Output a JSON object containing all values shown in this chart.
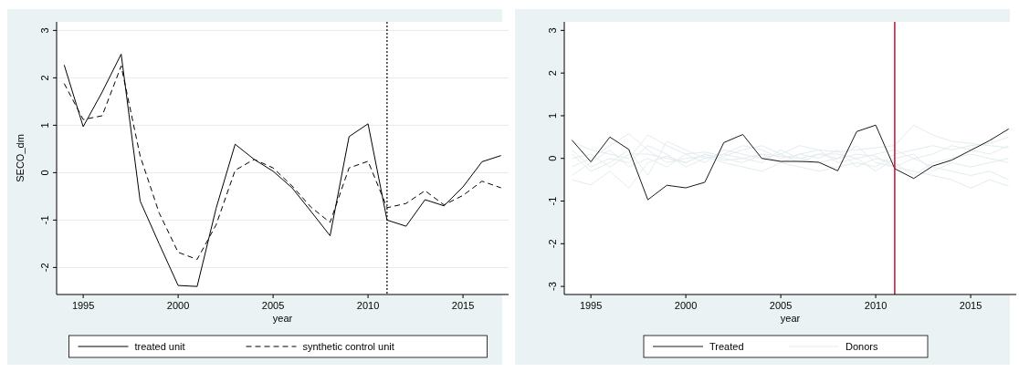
{
  "chart_data": [
    {
      "type": "line",
      "xlabel": "year",
      "ylabel": "SECO_dm",
      "x": [
        1994,
        1995,
        1996,
        1997,
        1998,
        1999,
        2000,
        2001,
        2002,
        2003,
        2004,
        2005,
        2006,
        2007,
        2008,
        2009,
        2010,
        2011,
        2012,
        2013,
        2014,
        2015,
        2016,
        2017
      ],
      "series": [
        {
          "name": "treated unit",
          "color": "#000000",
          "line_style": "solid",
          "values": [
            2.27,
            0.97,
            1.7,
            2.5,
            -0.6,
            -1.5,
            -2.38,
            -2.4,
            -0.75,
            0.6,
            0.28,
            0.03,
            -0.32,
            -0.82,
            -1.33,
            0.76,
            1.03,
            -1.0,
            -1.13,
            -0.57,
            -0.7,
            -0.3,
            0.23,
            0.36
          ]
        },
        {
          "name": "synthetic control unit",
          "color": "#000000",
          "line_style": "dashed",
          "values": [
            1.88,
            1.12,
            1.2,
            2.25,
            0.35,
            -0.85,
            -1.68,
            -1.83,
            -1.1,
            0.05,
            0.28,
            0.1,
            -0.28,
            -0.73,
            -1.05,
            0.1,
            0.24,
            -0.74,
            -0.65,
            -0.38,
            -0.68,
            -0.48,
            -0.18,
            -0.32
          ]
        }
      ],
      "xlim": [
        1993.6,
        2017.4
      ],
      "ylim": [
        -2.57,
        3.18
      ],
      "xticks": [
        1995,
        2000,
        2005,
        2010,
        2015
      ],
      "yticks": [
        -2,
        -1,
        0,
        1,
        2,
        3
      ],
      "grid": "y",
      "legend": "bottom",
      "ref_lines": [
        {
          "axis": "x",
          "value": 2011,
          "color": "#000000",
          "line_style": "dotted"
        }
      ]
    },
    {
      "type": "line",
      "xlabel": "year",
      "x": [
        1994,
        1995,
        1996,
        1997,
        1998,
        1999,
        2000,
        2001,
        2002,
        2003,
        2004,
        2005,
        2006,
        2007,
        2008,
        2009,
        2010,
        2011,
        2012,
        2013,
        2014,
        2015,
        2016,
        2017
      ],
      "series": [
        {
          "name": "Treated",
          "color": "#1a1a1a",
          "line_style": "solid",
          "values": [
            0.43,
            -0.08,
            0.5,
            0.21,
            -0.97,
            -0.63,
            -0.69,
            -0.56,
            0.37,
            0.56,
            0.0,
            -0.07,
            -0.07,
            -0.09,
            -0.29,
            0.63,
            0.78,
            -0.24,
            -0.47,
            -0.18,
            -0.04,
            0.19,
            0.42,
            0.69
          ]
        },
        {
          "name": "Donors",
          "color": "#e3ecee",
          "line_style": "solid",
          "values": [
            -0.5,
            -0.62,
            -0.3,
            -0.7,
            -0.1,
            0.05,
            -0.1,
            0.1,
            -0.05,
            0.0,
            0.1,
            0.05,
            0.0,
            -0.1,
            0.0,
            0.1,
            0.05,
            -0.2,
            -0.3,
            -0.4,
            -0.5,
            -0.7,
            -0.5,
            -0.65
          ]
        },
        {
          "color": "#e3ecee",
          "line_style": "solid",
          "values": [
            0.4,
            0.2,
            0.1,
            0.0,
            0.55,
            0.3,
            0.1,
            0.15,
            0.05,
            0.2,
            0.3,
            0.1,
            0.3,
            0.2,
            0.15,
            0.2,
            0.25,
            0.3,
            0.78,
            0.55,
            0.4,
            0.35,
            0.3,
            0.25
          ]
        },
        {
          "color": "#e3ecee",
          "line_style": "solid",
          "values": [
            -0.2,
            0.0,
            0.3,
            0.58,
            0.2,
            -0.1,
            0.0,
            0.05,
            -0.1,
            -0.2,
            -0.3,
            -0.1,
            -0.2,
            -0.3,
            -0.2,
            -0.1,
            -0.2,
            0.1,
            0.2,
            0.3,
            0.2,
            0.3,
            0.35,
            0.5
          ]
        },
        {
          "color": "#e3ecee",
          "line_style": "solid",
          "values": [
            0.1,
            -0.3,
            -0.1,
            0.2,
            -0.4,
            0.4,
            0.2,
            0.0,
            0.1,
            0.3,
            0.2,
            0.0,
            0.1,
            0.0,
            0.2,
            -0.2,
            0.0,
            -0.1,
            -0.4,
            -0.1,
            0.0,
            0.1,
            0.0,
            -0.1
          ]
        },
        {
          "color": "#e3ecee",
          "line_style": "solid",
          "values": [
            -0.4,
            -0.1,
            0.2,
            -0.2,
            0.0,
            -0.2,
            0.1,
            -0.1,
            0.2,
            0.1,
            0.0,
            0.1,
            -0.1,
            0.1,
            0.0,
            0.3,
            -0.1,
            -0.2,
            0.0,
            -0.2,
            -0.3,
            -0.4,
            -0.3,
            -0.5
          ]
        },
        {
          "color": "#e3ecee",
          "line_style": "solid",
          "values": [
            0.0,
            0.1,
            -0.2,
            0.1,
            0.1,
            0.0,
            -0.1,
            0.1,
            0.0,
            -0.1,
            0.1,
            -0.1,
            0.1,
            0.2,
            -0.1,
            0.0,
            0.1,
            0.2,
            0.0,
            0.1,
            0.3,
            0.2,
            0.1,
            0.3
          ]
        },
        {
          "color": "#e3ecee",
          "line_style": "solid",
          "values": [
            0.2,
            -0.2,
            0.0,
            -0.1,
            0.3,
            0.1,
            -0.2,
            0.0,
            0.1,
            0.0,
            -0.1,
            0.2,
            0.0,
            0.1,
            0.1,
            0.0,
            -0.3,
            0.0,
            0.1,
            -0.3,
            -0.1,
            -0.2,
            -0.1,
            0.0
          ]
        }
      ],
      "xlim": [
        1993.6,
        2017.4
      ],
      "ylim": [
        -3.19,
        3.2
      ],
      "xticks": [
        1995,
        2000,
        2005,
        2010,
        2015
      ],
      "yticks": [
        -3,
        -2,
        -1,
        0,
        1,
        2,
        3
      ],
      "legend": "bottom",
      "ref_lines": [
        {
          "axis": "x",
          "value": 2011,
          "color": "#c8102e",
          "line_style": "solid"
        }
      ]
    }
  ]
}
